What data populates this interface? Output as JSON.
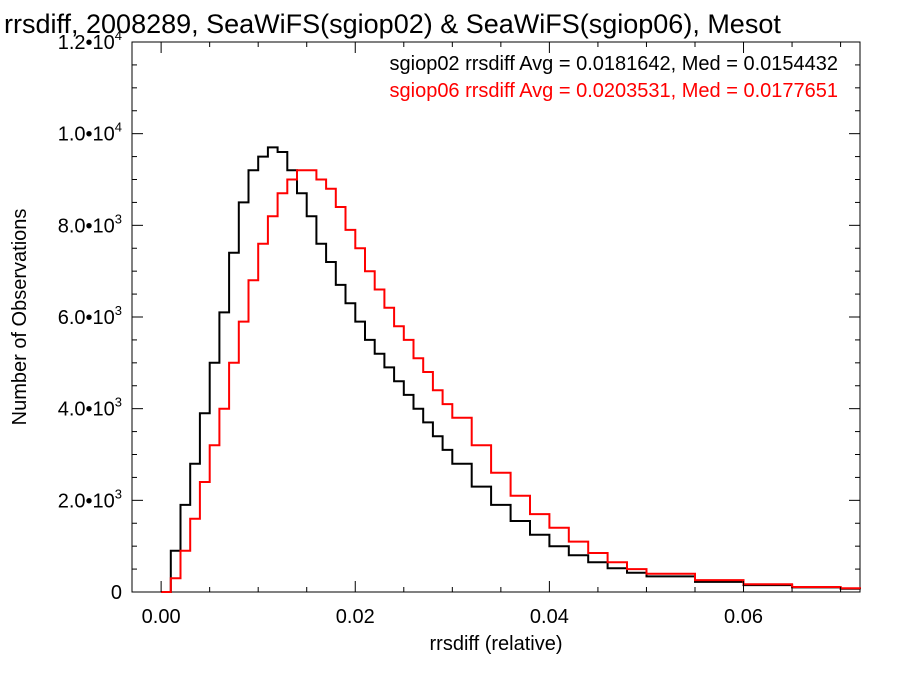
{
  "chart_data": {
    "type": "line",
    "title": "rrsdiff, 2008289, SeaWiFS(sgiop02) & SeaWiFS(sgiop06), Mesot",
    "xlabel": "rrsdiff (relative)",
    "ylabel": "Number of Observations",
    "xlim": [
      -0.003,
      0.072
    ],
    "ylim": [
      0,
      12000
    ],
    "x_ticks": [
      {
        "value": 0.0,
        "label": "0.00"
      },
      {
        "value": 0.02,
        "label": "0.02"
      },
      {
        "value": 0.04,
        "label": "0.04"
      },
      {
        "value": 0.06,
        "label": "0.06"
      }
    ],
    "y_ticks": [
      {
        "value": 0,
        "mantissa": "0",
        "exponent": ""
      },
      {
        "value": 2000,
        "mantissa": "2.0•10",
        "exponent": "3"
      },
      {
        "value": 4000,
        "mantissa": "4.0•10",
        "exponent": "3"
      },
      {
        "value": 6000,
        "mantissa": "6.0•10",
        "exponent": "3"
      },
      {
        "value": 8000,
        "mantissa": "8.0•10",
        "exponent": "3"
      },
      {
        "value": 10000,
        "mantissa": "1.0•10",
        "exponent": "4"
      },
      {
        "value": 12000,
        "mantissa": "1.2•10",
        "exponent": "4"
      }
    ],
    "grid": false,
    "legend_placement": "top-right",
    "annotations": [
      {
        "text": "sgiop02 rrsdiff Avg = 0.0181642, Med = 0.0154432",
        "color": "#000000"
      },
      {
        "text": "sgiop06 rrsdiff Avg = 0.0203531, Med = 0.0177651",
        "color": "#ff0000"
      }
    ],
    "series": [
      {
        "color": "#000000",
        "style": "step",
        "x": [
          0.0,
          0.001,
          0.002,
          0.003,
          0.004,
          0.005,
          0.006,
          0.007,
          0.008,
          0.009,
          0.01,
          0.011,
          0.012,
          0.013,
          0.014,
          0.015,
          0.016,
          0.017,
          0.018,
          0.019,
          0.02,
          0.021,
          0.022,
          0.023,
          0.024,
          0.025,
          0.026,
          0.027,
          0.028,
          0.029,
          0.03,
          0.032,
          0.034,
          0.036,
          0.038,
          0.04,
          0.042,
          0.044,
          0.046,
          0.048,
          0.05,
          0.055,
          0.06,
          0.065,
          0.07,
          0.072
        ],
        "y": [
          0,
          900,
          1900,
          2800,
          3900,
          5000,
          6100,
          7400,
          8500,
          9200,
          9500,
          9700,
          9600,
          9200,
          8700,
          8200,
          7600,
          7200,
          6700,
          6300,
          5900,
          5500,
          5200,
          4900,
          4600,
          4300,
          4000,
          3700,
          3400,
          3100,
          2800,
          2300,
          1900,
          1550,
          1250,
          1000,
          800,
          650,
          520,
          420,
          340,
          220,
          150,
          100,
          70,
          60
        ]
      },
      {
        "color": "#ff0000",
        "style": "step",
        "x": [
          0.0,
          0.001,
          0.002,
          0.003,
          0.004,
          0.005,
          0.006,
          0.007,
          0.008,
          0.009,
          0.01,
          0.011,
          0.012,
          0.013,
          0.014,
          0.015,
          0.016,
          0.017,
          0.018,
          0.019,
          0.02,
          0.021,
          0.022,
          0.023,
          0.024,
          0.025,
          0.026,
          0.027,
          0.028,
          0.029,
          0.03,
          0.032,
          0.034,
          0.036,
          0.038,
          0.04,
          0.042,
          0.044,
          0.046,
          0.048,
          0.05,
          0.055,
          0.06,
          0.065,
          0.07,
          0.072
        ],
        "y": [
          0,
          300,
          900,
          1600,
          2400,
          3200,
          4000,
          5000,
          5900,
          6800,
          7600,
          8200,
          8700,
          9000,
          9200,
          9200,
          9000,
          8800,
          8400,
          7900,
          7500,
          7000,
          6600,
          6200,
          5800,
          5500,
          5100,
          4800,
          4400,
          4100,
          3800,
          3200,
          2600,
          2100,
          1700,
          1400,
          1100,
          850,
          650,
          500,
          400,
          260,
          170,
          110,
          80,
          70
        ]
      }
    ]
  }
}
